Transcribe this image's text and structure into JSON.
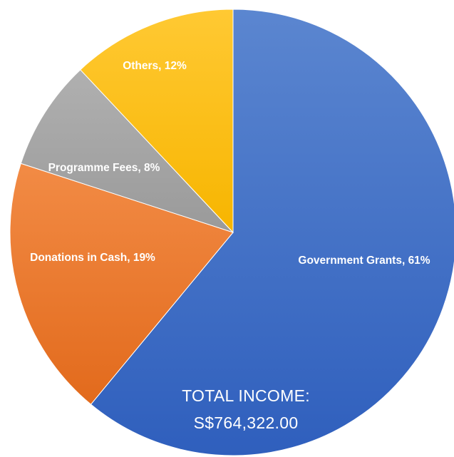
{
  "chart_data": {
    "type": "pie",
    "categories": [
      "Government Grants",
      "Donations in Cash",
      "Programme Fees",
      "Others"
    ],
    "values": [
      61,
      19,
      8,
      12
    ],
    "data_labels": [
      "Government Grants, 61%",
      "Donations in Cash, 19%",
      "Programme Fees, 8%",
      "Others, 12%"
    ],
    "colors": [
      "#4472C4",
      "#ED7D31",
      "#A5A5A5",
      "#FFC000"
    ],
    "start_angle_deg": 0,
    "direction": "clockwise",
    "title": "",
    "legend": "none",
    "total_label_line1": "TOTAL INCOME:",
    "total_label_line2": "S$764,322.00"
  }
}
